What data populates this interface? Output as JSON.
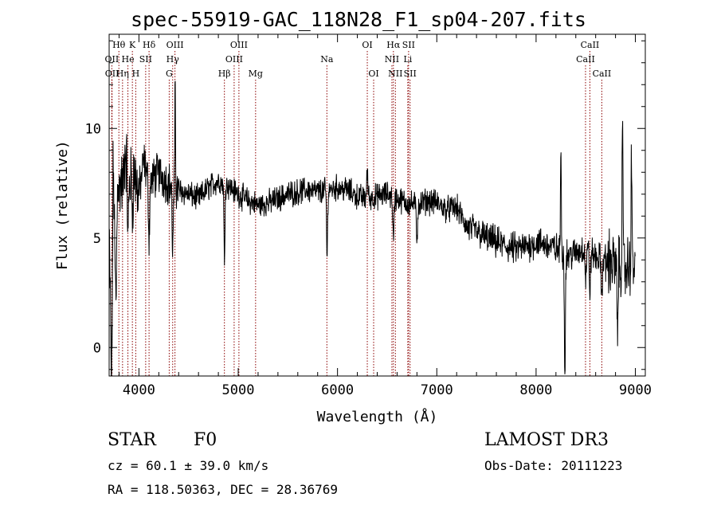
{
  "chart_data": {
    "type": "line",
    "title": "spec-55919-GAC_118N28_F1_sp04-207.fits",
    "xlabel": "Wavelength (Å)",
    "ylabel": "Flux (relative)",
    "xlim": [
      3700,
      9100
    ],
    "ylim": [
      -1.3,
      14.3
    ],
    "xticks": [
      4000,
      5000,
      6000,
      7000,
      8000,
      9000
    ],
    "yticks": [
      0,
      5,
      10
    ],
    "line_color": "#000000",
    "marker_color": "#8b0000",
    "spectrum_nodes": [
      [
        3700,
        5.0
      ],
      [
        3720,
        0.5
      ],
      [
        3740,
        9.0
      ],
      [
        3760,
        4.0
      ],
      [
        3790,
        8.0
      ],
      [
        3820,
        5.5
      ],
      [
        3860,
        9.0
      ],
      [
        3900,
        7.5
      ],
      [
        3950,
        8.0
      ],
      [
        4000,
        7.0
      ],
      [
        4050,
        8.5
      ],
      [
        4100,
        7.5
      ],
      [
        4200,
        8.0
      ],
      [
        4300,
        7.5
      ],
      [
        4400,
        7.2
      ],
      [
        4500,
        7.0
      ],
      [
        4600,
        6.8
      ],
      [
        4700,
        7.3
      ],
      [
        4800,
        7.6
      ],
      [
        4900,
        7.4
      ],
      [
        5000,
        7.0
      ],
      [
        5100,
        6.7
      ],
      [
        5200,
        6.5
      ],
      [
        5300,
        6.6
      ],
      [
        5400,
        6.8
      ],
      [
        5500,
        7.0
      ],
      [
        5600,
        7.1
      ],
      [
        5700,
        7.2
      ],
      [
        5800,
        7.1
      ],
      [
        5900,
        7.2
      ],
      [
        6000,
        7.3
      ],
      [
        6100,
        7.2
      ],
      [
        6200,
        6.9
      ],
      [
        6300,
        6.8
      ],
      [
        6400,
        6.9
      ],
      [
        6500,
        7.0
      ],
      [
        6600,
        6.8
      ],
      [
        6700,
        6.6
      ],
      [
        6800,
        6.5
      ],
      [
        6900,
        6.7
      ],
      [
        7000,
        6.6
      ],
      [
        7100,
        6.3
      ],
      [
        7200,
        6.4
      ],
      [
        7300,
        5.5
      ],
      [
        7400,
        5.3
      ],
      [
        7500,
        5.0
      ],
      [
        7600,
        4.8
      ],
      [
        7700,
        4.6
      ],
      [
        7800,
        4.5
      ],
      [
        7900,
        4.6
      ],
      [
        8000,
        4.8
      ],
      [
        8100,
        4.7
      ],
      [
        8200,
        4.5
      ],
      [
        8300,
        4.2
      ],
      [
        8400,
        4.3
      ],
      [
        8500,
        4.6
      ],
      [
        8600,
        4.1
      ],
      [
        8700,
        4.0
      ],
      [
        8800,
        3.8
      ],
      [
        8900,
        3.6
      ],
      [
        9000,
        3.8
      ]
    ],
    "spectrum_features": [
      {
        "wl": 3728,
        "depth": -4.0,
        "width": 6
      },
      {
        "wl": 3770,
        "depth": -3.0,
        "width": 6
      },
      {
        "wl": 3820,
        "depth": 2.0,
        "width": 8
      },
      {
        "wl": 3890,
        "depth": -3.0,
        "width": 5
      },
      {
        "wl": 3935,
        "depth": -1.5,
        "width": 5
      },
      {
        "wl": 4102,
        "depth": -2.5,
        "width": 6
      },
      {
        "wl": 4340,
        "depth": -3.0,
        "width": 6
      },
      {
        "wl": 4365,
        "depth": 5.5,
        "width": 3
      },
      {
        "wl": 4861,
        "depth": -3.5,
        "width": 5
      },
      {
        "wl": 5895,
        "depth": -3.2,
        "width": 5
      },
      {
        "wl": 6300,
        "depth": 1.2,
        "width": 6
      },
      {
        "wl": 6563,
        "depth": -2.0,
        "width": 6
      },
      {
        "wl": 6800,
        "depth": -1.5,
        "width": 6
      },
      {
        "wl": 8290,
        "depth": -5.5,
        "width": 5
      },
      {
        "wl": 8250,
        "depth": 5.0,
        "width": 4
      },
      {
        "wl": 8500,
        "depth": -1.5,
        "width": 6
      },
      {
        "wl": 8542,
        "depth": -1.8,
        "width": 6
      },
      {
        "wl": 8662,
        "depth": -1.7,
        "width": 6
      },
      {
        "wl": 8820,
        "depth": -3.5,
        "width": 5
      },
      {
        "wl": 8870,
        "depth": 7.0,
        "width": 4
      },
      {
        "wl": 8960,
        "depth": 5.5,
        "width": 4
      }
    ],
    "lines": [
      {
        "label": "Hθ",
        "wl": 3798,
        "row": 0
      },
      {
        "label": "OII",
        "wl": 3727,
        "row": 1
      },
      {
        "label": "OII",
        "wl": 3729,
        "row": 2
      },
      {
        "label": "Hη",
        "wl": 3835,
        "row": 2
      },
      {
        "label": "He",
        "wl": 3889,
        "row": 1
      },
      {
        "label": "K",
        "wl": 3934,
        "row": 0
      },
      {
        "label": "SII",
        "wl": 4068,
        "row": 1
      },
      {
        "label": "H",
        "wl": 3968,
        "row": 2
      },
      {
        "label": "Hδ",
        "wl": 4102,
        "row": 0
      },
      {
        "label": "G",
        "wl": 4305,
        "row": 2
      },
      {
        "label": "OIII",
        "wl": 4363,
        "row": 0
      },
      {
        "label": "Hγ",
        "wl": 4340,
        "row": 1
      },
      {
        "label": "Hβ",
        "wl": 4861,
        "row": 2
      },
      {
        "label": "OIII",
        "wl": 5007,
        "row": 0
      },
      {
        "label": "OIII",
        "wl": 4959,
        "row": 1
      },
      {
        "label": "Mg",
        "wl": 5175,
        "row": 2
      },
      {
        "label": "Na",
        "wl": 5893,
        "row": 1
      },
      {
        "label": "OI",
        "wl": 6300,
        "row": 0
      },
      {
        "label": "OI",
        "wl": 6364,
        "row": 2
      },
      {
        "label": "Hα",
        "wl": 6563,
        "row": 0
      },
      {
        "label": "NII",
        "wl": 6548,
        "row": 1
      },
      {
        "label": "NII",
        "wl": 6583,
        "row": 2
      },
      {
        "label": "SII",
        "wl": 6716,
        "row": 0
      },
      {
        "label": "Li",
        "wl": 6708,
        "row": 1
      },
      {
        "label": "SII",
        "wl": 6731,
        "row": 2
      },
      {
        "label": "CaII",
        "wl": 8542,
        "row": 0
      },
      {
        "label": "CaII",
        "wl": 8498,
        "row": 1
      },
      {
        "label": "CaII",
        "wl": 8662,
        "row": 2
      }
    ]
  },
  "info": {
    "class": "STAR",
    "subclass": "F0",
    "survey": "LAMOST DR3",
    "cz": "cz = 60.1 ± 39.0 km/s",
    "obs_date": "Obs-Date: 20111223",
    "radec": "RA = 118.50363, DEC =  28.36769"
  }
}
